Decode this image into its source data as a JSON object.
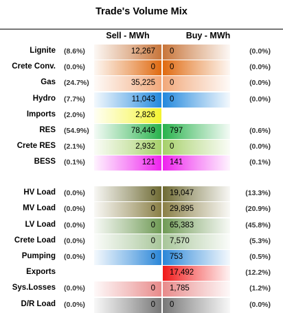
{
  "title": "Trade's Volume Mix",
  "headers": {
    "sell": "Sell - MWh",
    "buy": "Buy - MWh"
  },
  "chart_data": {
    "type": "table",
    "title": "Trade's Volume Mix",
    "columns": [
      "Sell - MWh",
      "Buy - MWh"
    ],
    "rows": [
      {
        "label": "Lignite",
        "sell": "12,267",
        "sell_pct": "(8.6%)",
        "buy": "0",
        "buy_pct": "(0.0%)",
        "color": "#c8753a"
      },
      {
        "label": "Crete Conv.",
        "sell": "0",
        "sell_pct": "(0.0%)",
        "buy": "0",
        "buy_pct": "(0.0%)",
        "color": "#e06a10"
      },
      {
        "label": "Gas",
        "sell": "35,225",
        "sell_pct": "(24.7%)",
        "buy": "0",
        "buy_pct": "(0.0%)",
        "color": "#f1a87a"
      },
      {
        "label": "Hydro",
        "sell": "11,043",
        "sell_pct": "(7.7%)",
        "buy": "0",
        "buy_pct": "(0.0%)",
        "color": "#2288dd"
      },
      {
        "label": "Imports",
        "sell": "2,826",
        "sell_pct": "(2.0%)",
        "buy": "",
        "buy_pct": "",
        "color": "#f4f430"
      },
      {
        "label": "RES",
        "sell": "78,449",
        "sell_pct": "(54.9%)",
        "buy": "797",
        "buy_pct": "(0.6%)",
        "color": "#28b24c"
      },
      {
        "label": "Crete RES",
        "sell": "2,932",
        "sell_pct": "(2.1%)",
        "buy": "0",
        "buy_pct": "(0.0%)",
        "color": "#a6d06a"
      },
      {
        "label": "BESS",
        "sell": "121",
        "sell_pct": "(0.1%)",
        "buy": "141",
        "buy_pct": "(0.1%)",
        "color": "#ee22ee"
      },
      {
        "label": "HV Load",
        "sell": "0",
        "sell_pct": "(0.0%)",
        "buy": "19,047",
        "buy_pct": "(13.3%)",
        "color": "#6e6a33"
      },
      {
        "label": "MV Load",
        "sell": "0",
        "sell_pct": "(0.0%)",
        "buy": "29,895",
        "buy_pct": "(20.9%)",
        "color": "#8a7f46"
      },
      {
        "label": "LV Load",
        "sell": "0",
        "sell_pct": "(0.0%)",
        "buy": "65,383",
        "buy_pct": "(45.8%)",
        "color": "#6f9a55"
      },
      {
        "label": "Crete Load",
        "sell": "0",
        "sell_pct": "(0.0%)",
        "buy": "7,570",
        "buy_pct": "(5.3%)",
        "color": "#a8c69a"
      },
      {
        "label": "Pumping",
        "sell": "0",
        "sell_pct": "(0.0%)",
        "buy": "753",
        "buy_pct": "(0.5%)",
        "color": "#2a86d8"
      },
      {
        "label": "Exports",
        "sell": "",
        "sell_pct": "",
        "buy": "17,492",
        "buy_pct": "(12.2%)",
        "color": "#f01818"
      },
      {
        "label": "Sys.Losses",
        "sell": "0",
        "sell_pct": "(0.0%)",
        "buy": "1,785",
        "buy_pct": "(1.2%)",
        "color": "#e88a8a"
      },
      {
        "label": "D/R Load",
        "sell": "0",
        "sell_pct": "(0.0%)",
        "buy": "0",
        "buy_pct": "(0.0%)",
        "color": "#777777"
      }
    ]
  }
}
